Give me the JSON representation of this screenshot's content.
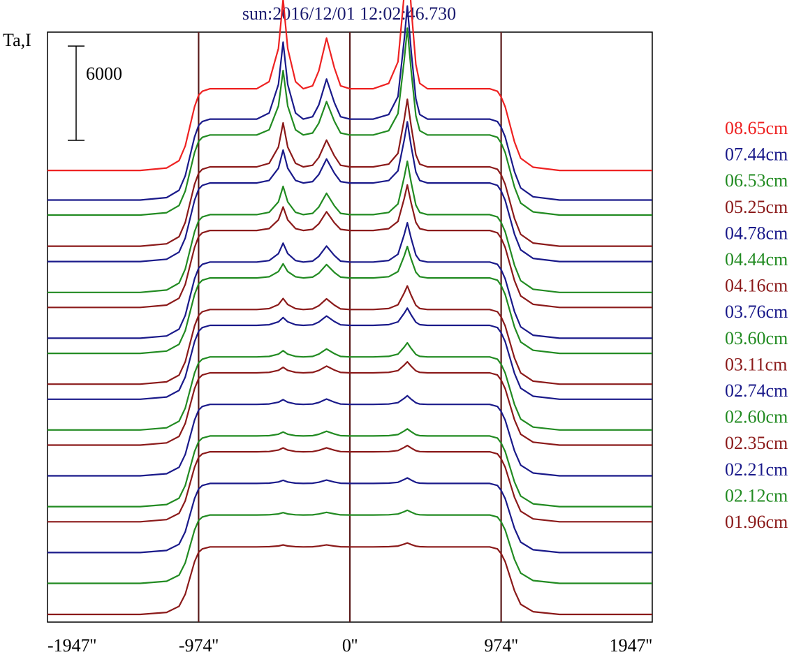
{
  "chart_data": {
    "type": "line",
    "title": "sun:2016/12/01 12:02:46.730",
    "ylabel": "Ta,I",
    "xlabel": "",
    "x_ticks": [
      {
        "value": -1947,
        "label": "-1947''"
      },
      {
        "value": -974,
        "label": "-974''"
      },
      {
        "value": 0,
        "label": "0''"
      },
      {
        "value": 974,
        "label": "974''"
      },
      {
        "value": 1947,
        "label": "1947''"
      }
    ],
    "xlim": [
      -1947,
      1947
    ],
    "vertical_lines": [
      -974,
      0,
      974
    ],
    "scale_bar": {
      "value": 6000,
      "label": "6000"
    },
    "ylim": [
      0,
      36000
    ],
    "layout": "stacked-offset",
    "grid": false,
    "legend_position": "right",
    "colors": {
      "frame": "#000000",
      "marker_line": "#5a1a1a",
      "title": "#1a1a6e"
    },
    "profile_template": {
      "x": [
        -1947,
        -1350,
        -1180,
        -1100,
        -1060,
        -1000,
        -974,
        -950,
        -900,
        -800,
        -700,
        -600,
        -520,
        -460,
        -430,
        -400,
        -350,
        -300,
        -240,
        -200,
        -150,
        -100,
        -60,
        0,
        60,
        150,
        250,
        310,
        350,
        370,
        395,
        425,
        450,
        500,
        600,
        700,
        800,
        850,
        900,
        950,
        974,
        1000,
        1060,
        1100,
        1180,
        1350,
        1947
      ],
      "shape": [
        0,
        0,
        0.03,
        0.12,
        0.3,
        0.78,
        0.92,
        0.97,
        1.0,
        1.0,
        1.0,
        1.0,
        1.0,
        1.0,
        1.0,
        1.0,
        1.0,
        1.0,
        1.0,
        1.0,
        1.0,
        1.0,
        1.0,
        1.0,
        1.0,
        1.0,
        1.0,
        1.0,
        1.0,
        1.0,
        1.0,
        1.0,
        1.0,
        1.0,
        1.0,
        1.0,
        1.0,
        1.0,
        1.0,
        0.97,
        0.9,
        0.78,
        0.35,
        0.15,
        0.04,
        0,
        0
      ],
      "peak_a": [
        0,
        0,
        0,
        0,
        0,
        0,
        0,
        0,
        0,
        0,
        0,
        0,
        0.08,
        0.45,
        1.0,
        0.45,
        0.08,
        0,
        0,
        0,
        0,
        0,
        0,
        0,
        0,
        0,
        0,
        0,
        0,
        0,
        0,
        0,
        0,
        0,
        0,
        0,
        0,
        0,
        0,
        0,
        0,
        0,
        0,
        0,
        0,
        0,
        0
      ],
      "peak_b": [
        0,
        0,
        0,
        0,
        0,
        0,
        0,
        0,
        0,
        0,
        0,
        0,
        0,
        0,
        0,
        0,
        0,
        0,
        0.05,
        0.3,
        0.85,
        0.35,
        0.05,
        0,
        0,
        0,
        0,
        0,
        0,
        0,
        0,
        0,
        0,
        0,
        0,
        0,
        0,
        0,
        0,
        0,
        0,
        0,
        0,
        0,
        0,
        0,
        0
      ],
      "peak_c": [
        0,
        0,
        0,
        0,
        0,
        0,
        0,
        0,
        0,
        0,
        0,
        0,
        0,
        0,
        0,
        0,
        0,
        0,
        0,
        0,
        0,
        0,
        0,
        0,
        0,
        0,
        0.04,
        0.2,
        0.7,
        1.0,
        0.6,
        0.18,
        0.04,
        0,
        0,
        0,
        0,
        0,
        0,
        0,
        0,
        0,
        0,
        0,
        0,
        0,
        0
      ]
    },
    "series": [
      {
        "name": "08.65cm",
        "color": "#ee2222",
        "baseline": 28260,
        "disk": 5200,
        "peak_a": 5700,
        "peak_b": 3800,
        "peak_c": 8600
      },
      {
        "name": "07.44cm",
        "color": "#1a1a8a",
        "baseline": 26380,
        "disk": 5150,
        "peak_a": 4900,
        "peak_b": 3000,
        "peak_c": 7200
      },
      {
        "name": "06.53cm",
        "color": "#228b22",
        "baseline": 25420,
        "disk": 5100,
        "peak_a": 4100,
        "peak_b": 2500,
        "peak_c": 6800
      },
      {
        "name": "05.25cm",
        "color": "#8b1a1a",
        "baseline": 23440,
        "disk": 5050,
        "peak_a": 2800,
        "peak_b": 2000,
        "peak_c": 4300
      },
      {
        "name": "04.78cm",
        "color": "#1a1a8a",
        "baseline": 22460,
        "disk": 5000,
        "peak_a": 2100,
        "peak_b": 1800,
        "peak_c": 3900
      },
      {
        "name": "04.44cm",
        "color": "#228b22",
        "baseline": 20500,
        "disk": 4950,
        "peak_a": 1800,
        "peak_b": 1600,
        "peak_c": 3400
      },
      {
        "name": "04.16cm",
        "color": "#8b1a1a",
        "baseline": 19540,
        "disk": 4900,
        "peak_a": 1500,
        "peak_b": 1400,
        "peak_c": 2900
      },
      {
        "name": "03.76cm",
        "color": "#1a1a8a",
        "baseline": 17580,
        "disk": 4850,
        "peak_a": 1200,
        "peak_b": 1200,
        "peak_c": 2500
      },
      {
        "name": "03.60cm",
        "color": "#228b22",
        "baseline": 16620,
        "disk": 4800,
        "peak_a": 900,
        "peak_b": 1000,
        "peak_c": 2000
      },
      {
        "name": "03.11cm",
        "color": "#8b1a1a",
        "baseline": 14660,
        "disk": 4750,
        "peak_a": 700,
        "peak_b": 800,
        "peak_c": 1500
      },
      {
        "name": "02.74cm",
        "color": "#1a1a8a",
        "baseline": 13700,
        "disk": 4700,
        "peak_a": 500,
        "peak_b": 700,
        "peak_c": 1100
      },
      {
        "name": "02.60cm",
        "color": "#228b22",
        "baseline": 11740,
        "disk": 4650,
        "peak_a": 400,
        "peak_b": 600,
        "peak_c": 900
      },
      {
        "name": "02.35cm",
        "color": "#8b1a1a",
        "baseline": 10780,
        "disk": 4600,
        "peak_a": 350,
        "peak_b": 500,
        "peak_c": 700
      },
      {
        "name": "02.21cm",
        "color": "#1a1a8a",
        "baseline": 8820,
        "disk": 4550,
        "peak_a": 300,
        "peak_b": 400,
        "peak_c": 550
      },
      {
        "name": "02.12cm",
        "color": "#228b22",
        "baseline": 6860,
        "disk": 4500,
        "peak_a": 250,
        "peak_b": 350,
        "peak_c": 450
      },
      {
        "name": "01.96cm",
        "color": "#8b1a1a",
        "baseline": 5900,
        "disk": 4450,
        "peak_a": 250,
        "peak_b": 300,
        "peak_c": 400
      },
      {
        "name": "",
        "color": "#1a1a8a",
        "baseline": 3940,
        "disk": 4400,
        "peak_a": 200,
        "peak_b": 250,
        "peak_c": 350
      },
      {
        "name": "",
        "color": "#228b22",
        "baseline": 1980,
        "disk": 4350,
        "peak_a": 150,
        "peak_b": 200,
        "peak_c": 300
      },
      {
        "name": "",
        "color": "#8b1a1a",
        "baseline": 0,
        "disk": 4300,
        "peak_a": 120,
        "peak_b": 150,
        "peak_c": 250
      }
    ]
  }
}
